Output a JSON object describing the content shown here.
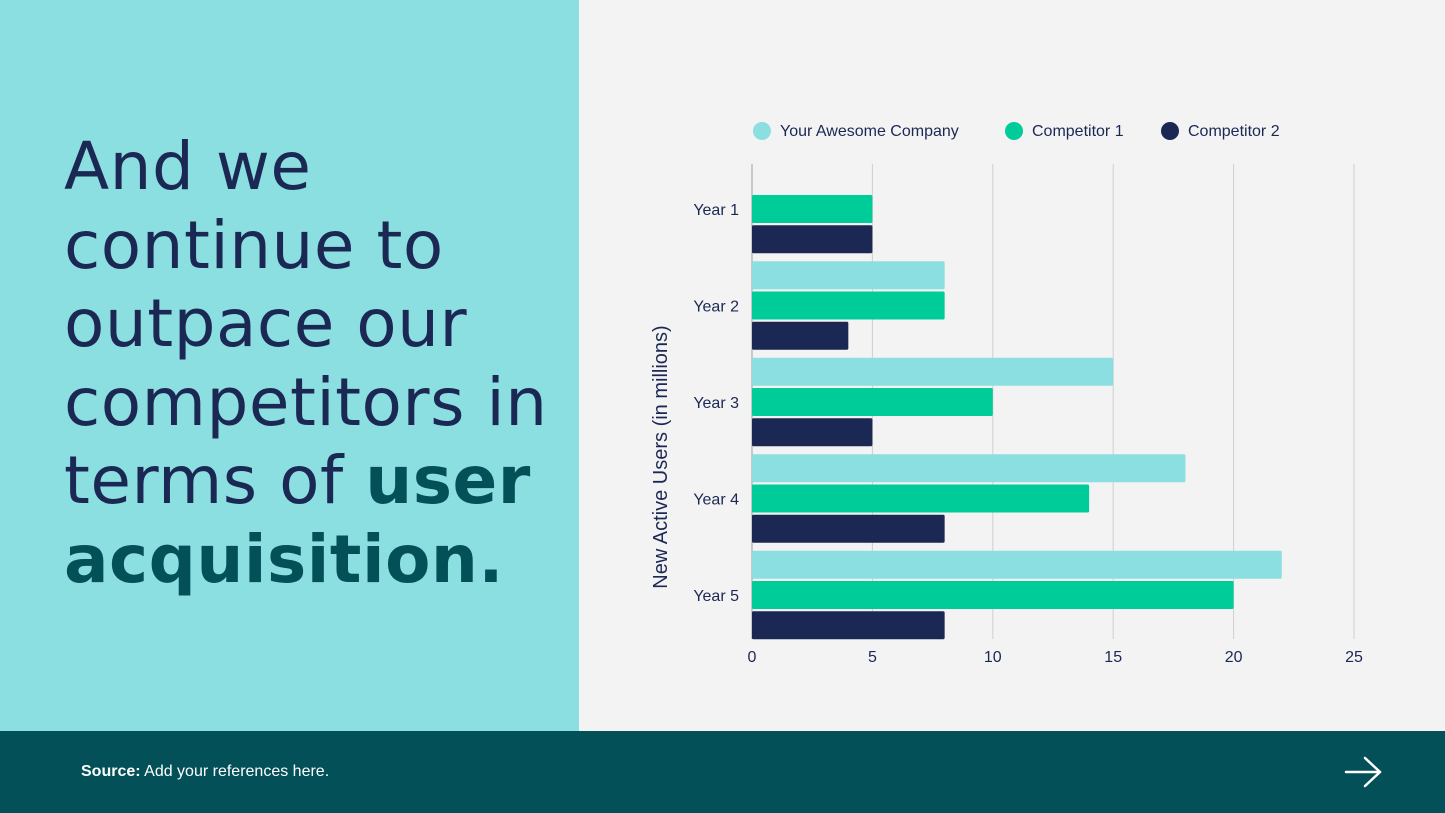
{
  "headline": {
    "regular": "And we continue to outpace our competitors in terms of ",
    "bold": "user acquisition."
  },
  "colors": {
    "panel": "#8cdfe0",
    "footer": "#035058",
    "text_dark": "#1c2854",
    "series_1": "#8cdfe0",
    "series_2": "#00cc9a",
    "series_3": "#1c2854"
  },
  "footer": {
    "source_label": "Source:",
    "source_text": " Add your references here.",
    "next_icon": "arrow-right-icon"
  },
  "chart_data": {
    "type": "bar",
    "orientation": "horizontal",
    "categories": [
      "Year 1",
      "Year 2",
      "Year 3",
      "Year 4",
      "Year 5"
    ],
    "series": [
      {
        "name": "Your Awesome Company",
        "color": "#8cdfe0",
        "values": [
          0,
          8,
          15,
          18,
          22
        ]
      },
      {
        "name": "Competitor 1",
        "color": "#00cc9a",
        "values": [
          5,
          8,
          10,
          14,
          20
        ]
      },
      {
        "name": "Competitor 2",
        "color": "#1c2854",
        "values": [
          5,
          4,
          5,
          8,
          8
        ]
      }
    ],
    "title": "",
    "xlabel": "",
    "ylabel": "New Active Users (in millions)",
    "xlim": [
      0,
      25
    ],
    "xticks": [
      "0",
      "5",
      "10",
      "15",
      "20",
      "25"
    ],
    "grid": "vertical",
    "legend": "top"
  }
}
